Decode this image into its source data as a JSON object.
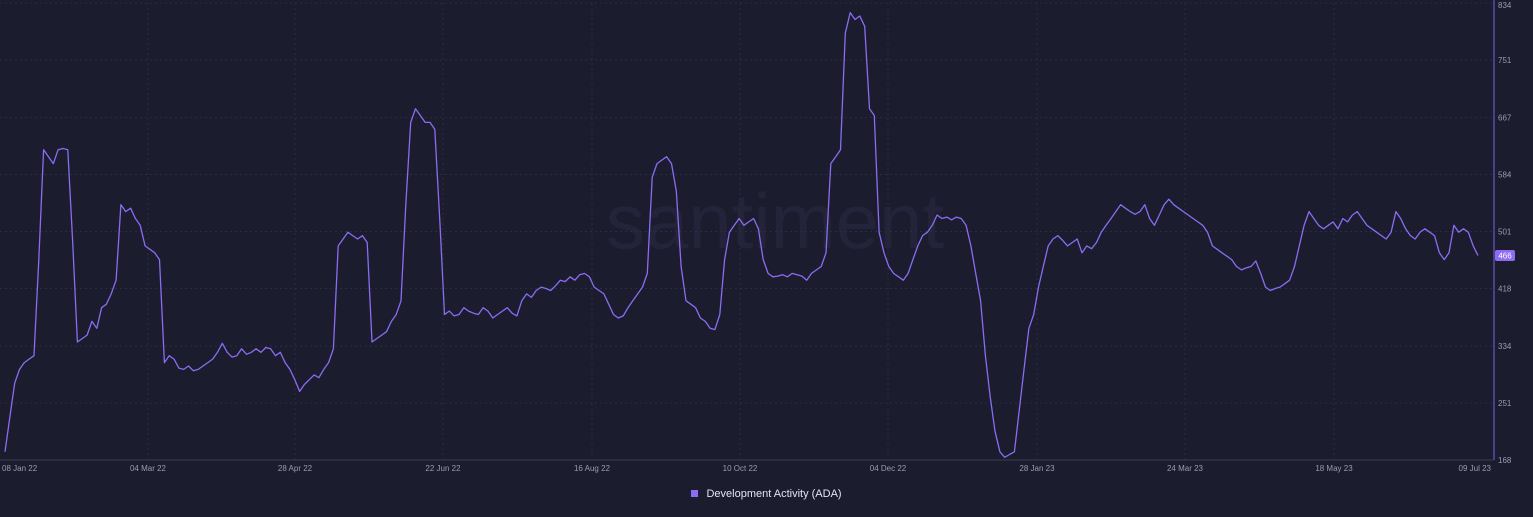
{
  "chart_data": {
    "type": "line",
    "watermark": "santiment",
    "x_ticks": [
      "08 Jan 22",
      "04 Mar 22",
      "28 Apr 22",
      "22 Jun 22",
      "16 Aug 22",
      "10 Oct 22",
      "04 Dec 22",
      "28 Jan 23",
      "24 Mar 23",
      "18 May 23",
      "09 Jul 23"
    ],
    "y_ticks": [
      168,
      251,
      334,
      418,
      501,
      584,
      667,
      751,
      834
    ],
    "ylim": [
      168,
      834
    ],
    "grid": true,
    "legend_position": "bottom-center",
    "series": [
      {
        "name": "Development Activity (ADA)",
        "color": "#8b6cf2",
        "last_value": "466",
        "x_start": "2022-01-08",
        "x_end": "2023-07-09",
        "values": [
          180,
          230,
          280,
          300,
          310,
          315,
          320,
          460,
          620,
          610,
          600,
          620,
          622,
          620,
          488,
          340,
          345,
          350,
          370,
          360,
          390,
          395,
          410,
          430,
          540,
          530,
          535,
          520,
          510,
          480,
          475,
          470,
          460,
          310,
          320,
          315,
          302,
          300,
          305,
          298,
          300,
          305,
          310,
          315,
          325,
          338,
          325,
          318,
          320,
          330,
          322,
          325,
          330,
          325,
          332,
          330,
          320,
          325,
          310,
          300,
          285,
          268,
          278,
          285,
          292,
          288,
          300,
          310,
          330,
          480,
          490,
          500,
          495,
          490,
          495,
          485,
          340,
          345,
          350,
          355,
          370,
          380,
          400,
          540,
          660,
          680,
          670,
          660,
          660,
          650,
          520,
          380,
          385,
          378,
          380,
          390,
          385,
          382,
          380,
          390,
          385,
          375,
          380,
          385,
          390,
          382,
          378,
          400,
          410,
          405,
          415,
          420,
          418,
          415,
          422,
          430,
          428,
          435,
          430,
          438,
          440,
          435,
          420,
          415,
          410,
          395,
          380,
          375,
          378,
          390,
          400,
          410,
          420,
          440,
          580,
          600,
          605,
          610,
          600,
          560,
          450,
          400,
          395,
          390,
          375,
          370,
          360,
          358,
          380,
          460,
          500,
          510,
          520,
          510,
          515,
          520,
          505,
          460,
          440,
          435,
          436,
          438,
          435,
          440,
          438,
          436,
          430,
          440,
          445,
          450,
          470,
          600,
          610,
          620,
          790,
          820,
          810,
          815,
          800,
          680,
          670,
          500,
          470,
          450,
          440,
          435,
          430,
          440,
          460,
          480,
          495,
          500,
          510,
          525,
          520,
          522,
          518,
          522,
          520,
          510,
          480,
          440,
          400,
          320,
          260,
          210,
          180,
          172,
          176,
          180,
          240,
          300,
          360,
          380,
          420,
          450,
          480,
          490,
          495,
          488,
          480,
          485,
          490,
          470,
          480,
          476,
          485,
          500,
          510,
          520,
          530,
          540,
          535,
          530,
          526,
          530,
          540,
          520,
          510,
          525,
          540,
          548,
          540,
          535,
          530,
          525,
          520,
          515,
          510,
          500,
          480,
          475,
          470,
          465,
          460,
          450,
          445,
          448,
          450,
          458,
          440,
          420,
          415,
          418,
          420,
          425,
          430,
          450,
          480,
          510,
          530,
          520,
          510,
          505,
          510,
          515,
          505,
          520,
          515,
          525,
          530,
          520,
          510,
          505,
          500,
          495,
          490,
          500,
          530,
          520,
          505,
          495,
          490,
          500,
          505,
          500,
          495,
          470,
          460,
          470,
          510,
          500,
          505,
          500,
          480,
          466
        ]
      }
    ]
  }
}
